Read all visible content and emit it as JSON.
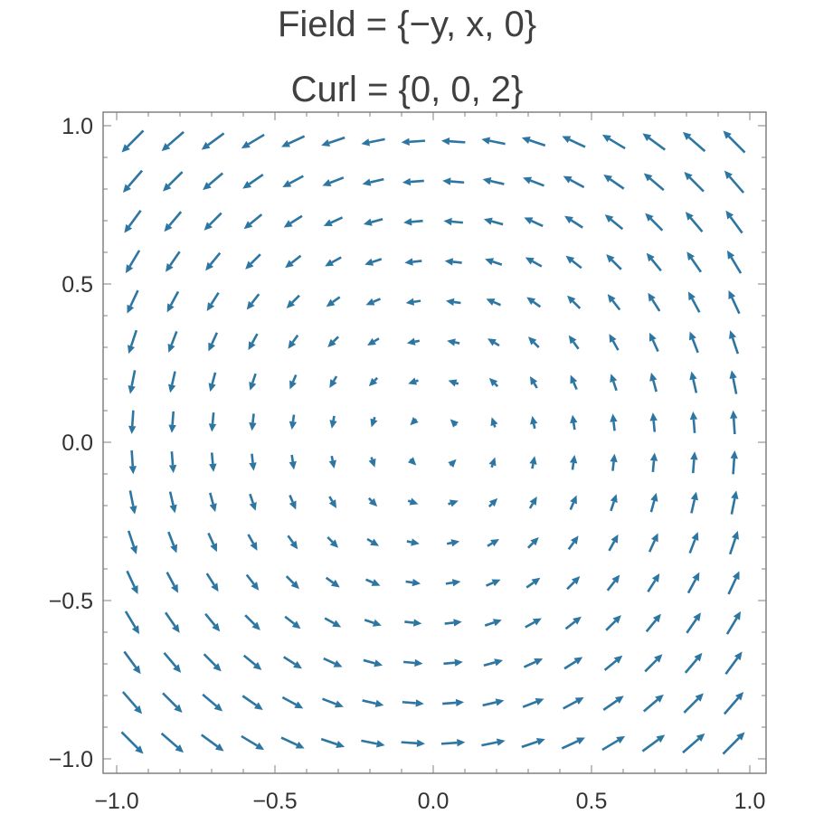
{
  "chart_data": {
    "type": "vector-field",
    "title": "Field = {−y, x, 0}",
    "subtitle": "Curl = {0, 0, 2}",
    "xlabel": "",
    "ylabel": "",
    "xlim": [
      -1.0,
      1.0
    ],
    "ylim": [
      -1.0,
      1.0
    ],
    "x_ticks": [
      "−1.0",
      "−0.5",
      "0.0",
      "0.5",
      "1.0"
    ],
    "y_ticks": [
      "1.0",
      "0.5",
      "0.0",
      "−0.5",
      "−1.0"
    ],
    "field": {
      "u": "-y",
      "v": "x"
    },
    "sample_grid": {
      "x_min": -0.95,
      "x_max": 0.95,
      "y_min": -0.95,
      "y_max": 0.95,
      "count": 16
    },
    "grid": false,
    "arrow_color": "#2e76a2",
    "frame_color": "#808080"
  }
}
